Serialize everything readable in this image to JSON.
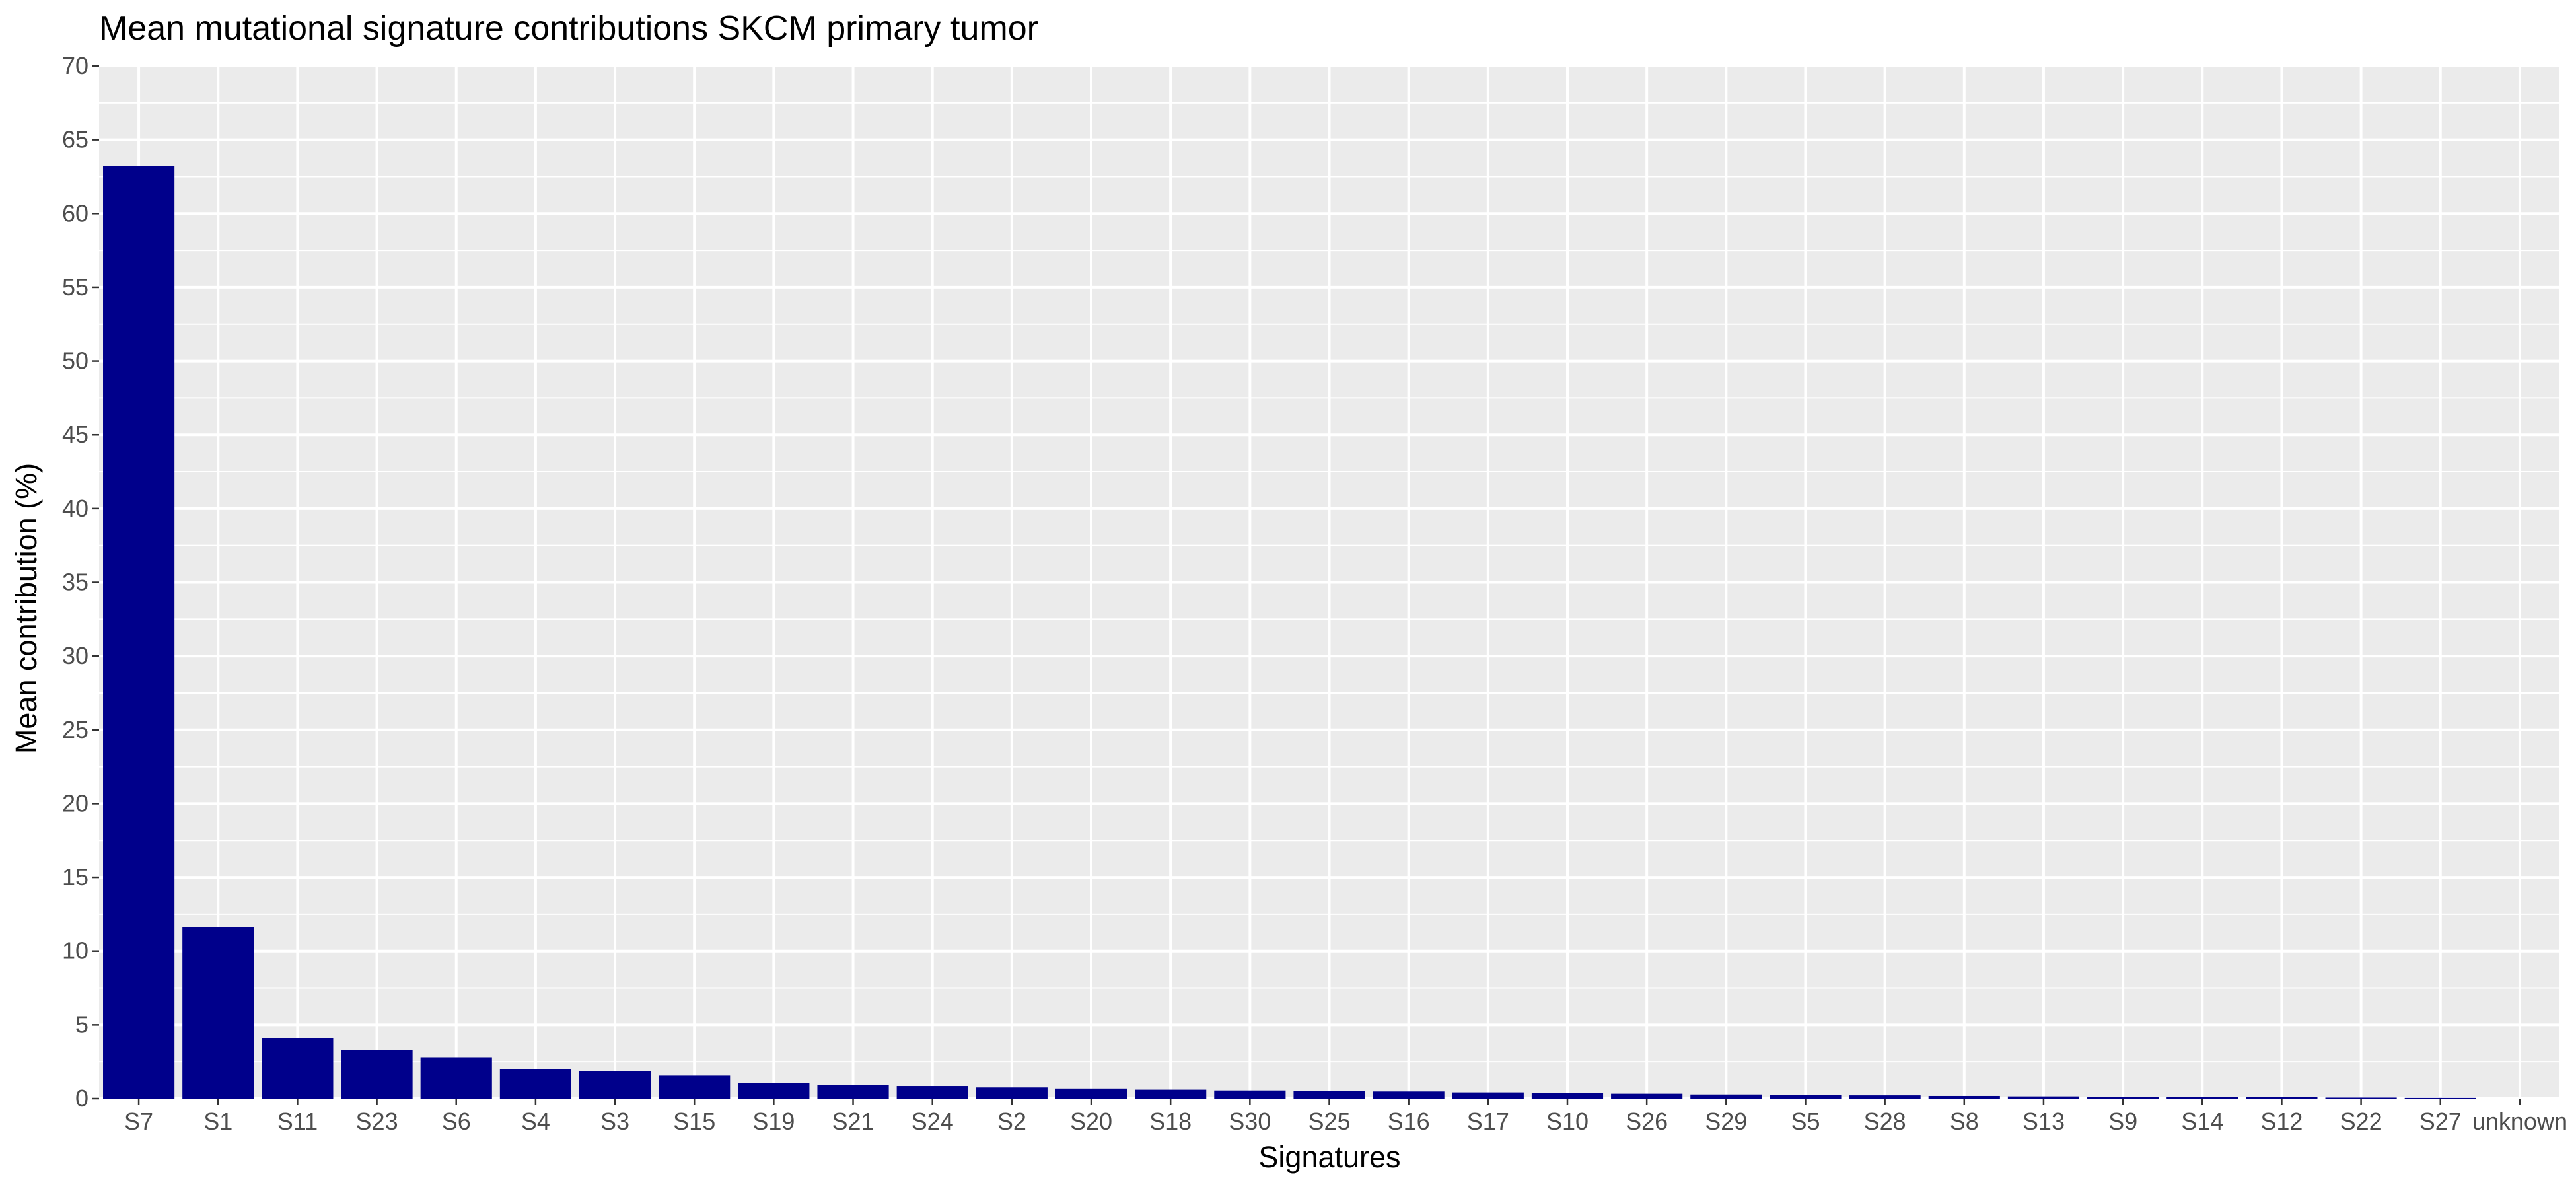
{
  "chart_data": {
    "type": "bar",
    "title": "Mean mutational signature contributions SKCM primary tumor",
    "xlabel": "Signatures",
    "ylabel": "Mean contribution (%)",
    "ylim": [
      0,
      70
    ],
    "yticks": [
      0,
      5,
      10,
      15,
      20,
      25,
      30,
      35,
      40,
      45,
      50,
      55,
      60,
      65,
      70
    ],
    "categories": [
      "S7",
      "S1",
      "S11",
      "S23",
      "S6",
      "S4",
      "S3",
      "S15",
      "S19",
      "S21",
      "S24",
      "S2",
      "S20",
      "S18",
      "S30",
      "S25",
      "S16",
      "S17",
      "S10",
      "S26",
      "S29",
      "S5",
      "S28",
      "S8",
      "S13",
      "S9",
      "S14",
      "S12",
      "S22",
      "S27",
      "unknown"
    ],
    "values": [
      63.2,
      11.6,
      4.1,
      3.3,
      2.8,
      2.0,
      1.85,
      1.55,
      1.05,
      0.9,
      0.85,
      0.75,
      0.68,
      0.6,
      0.55,
      0.52,
      0.48,
      0.42,
      0.38,
      0.33,
      0.28,
      0.25,
      0.22,
      0.18,
      0.15,
      0.13,
      0.11,
      0.09,
      0.07,
      0.05,
      0.0
    ],
    "bar_color": "#00008b",
    "panel_background": "#ebebeb",
    "grid_color": "#ffffff",
    "grid": true,
    "legend": "none"
  }
}
